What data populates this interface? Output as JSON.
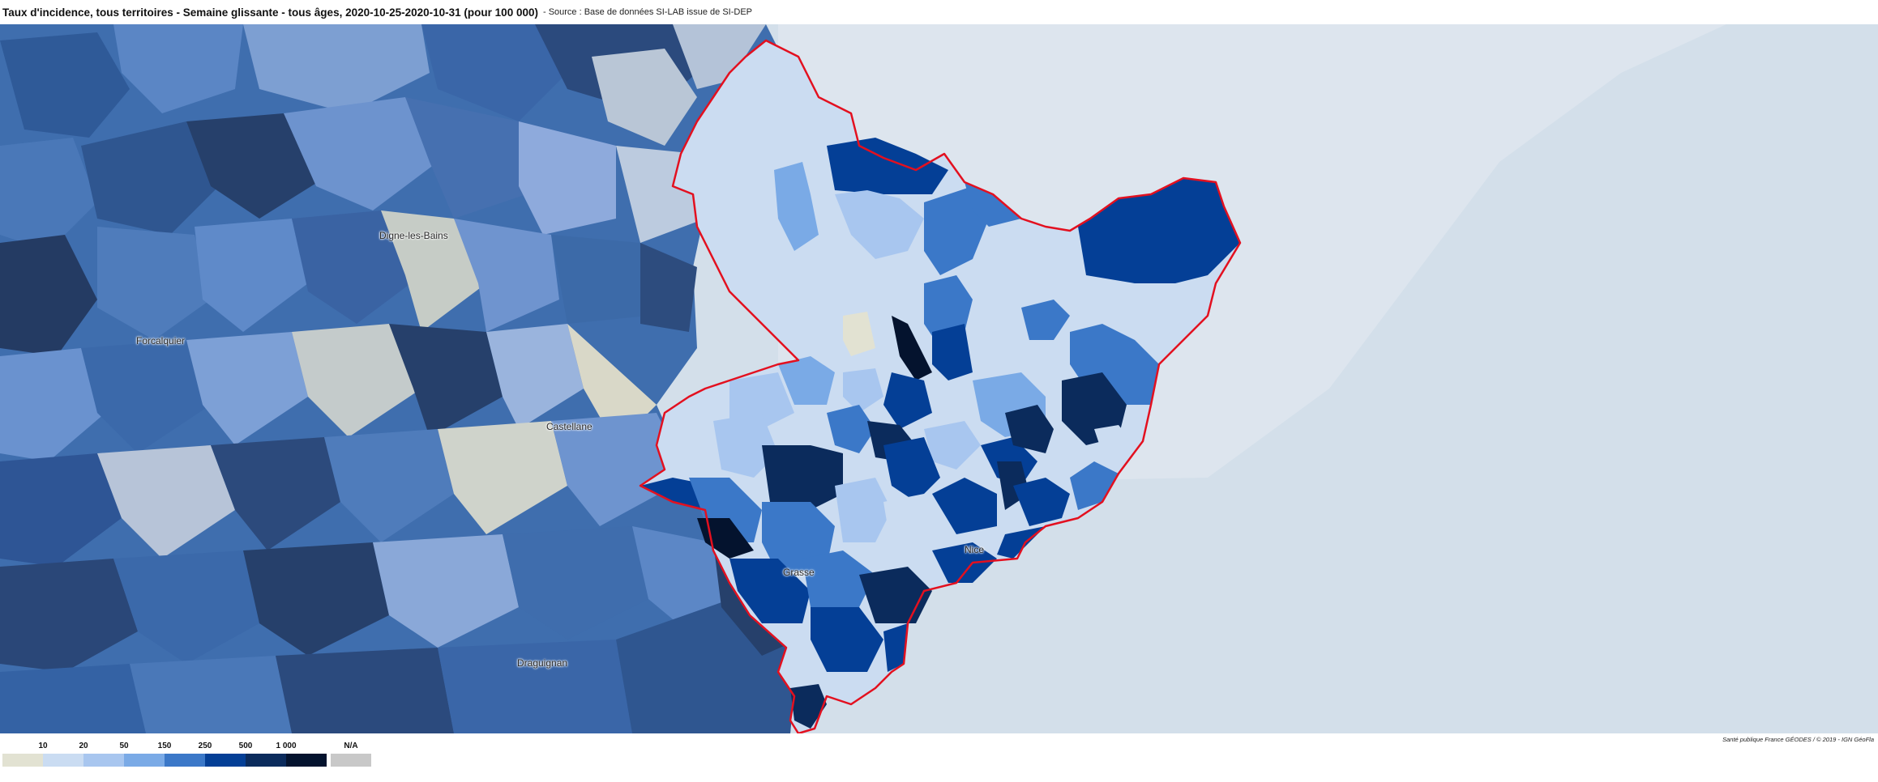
{
  "header": {
    "title": "Taux d'incidence, tous territoires - Semaine glissante - tous âges, 2020-10-25-2020-10-31 (pour 100 000)",
    "source": "- Source : Base de données SI-LAB issue de SI-DEP"
  },
  "map": {
    "places": [
      {
        "id": "digne",
        "name": "Digne-les-Bains"
      },
      {
        "id": "forcalquier",
        "name": "Forcalquier"
      },
      {
        "id": "castellane",
        "name": "Castellane"
      },
      {
        "id": "nice",
        "name": "Nice"
      },
      {
        "id": "grasse",
        "name": "Grasse"
      },
      {
        "id": "draguignan",
        "name": "Draguignan"
      }
    ],
    "highlight_color": "#e3101f",
    "sea_color": "#d3dfea"
  },
  "legend": {
    "ticks": [
      "10",
      "20",
      "50",
      "150",
      "250",
      "500",
      "1 000"
    ],
    "na_label": "N/A",
    "colors": [
      "#e2e2d2",
      "#cadcf2",
      "#a8c6ef",
      "#7aaae6",
      "#3b78c8",
      "#043f96",
      "#0b2b5c",
      "#04132e"
    ],
    "na_color": "#c8c8c8"
  },
  "attribution": "Santé publique France GÉODES / © 2019 - IGN GéoFla"
}
